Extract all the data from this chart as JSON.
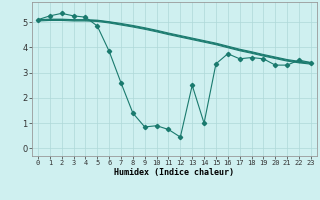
{
  "background_color": "#cff0f0",
  "grid_color": "#afd8d8",
  "line_color": "#1a7a6e",
  "xlabel": "Humidex (Indice chaleur)",
  "xlim": [
    -0.5,
    23.5
  ],
  "ylim": [
    -0.3,
    5.8
  ],
  "yticks": [
    0,
    1,
    2,
    3,
    4,
    5
  ],
  "xticks": [
    0,
    1,
    2,
    3,
    4,
    5,
    6,
    7,
    8,
    9,
    10,
    11,
    12,
    13,
    14,
    15,
    16,
    17,
    18,
    19,
    20,
    21,
    22,
    23
  ],
  "smooth_lines": [
    [
      5.1,
      5.12,
      5.12,
      5.1,
      5.1,
      5.08,
      5.02,
      4.95,
      4.87,
      4.78,
      4.68,
      4.57,
      4.47,
      4.37,
      4.27,
      4.17,
      4.05,
      3.93,
      3.83,
      3.72,
      3.62,
      3.52,
      3.45,
      3.4
    ],
    [
      5.08,
      5.1,
      5.1,
      5.08,
      5.08,
      5.06,
      5.0,
      4.92,
      4.84,
      4.75,
      4.65,
      4.54,
      4.44,
      4.34,
      4.24,
      4.14,
      4.02,
      3.9,
      3.8,
      3.69,
      3.59,
      3.49,
      3.42,
      3.37
    ],
    [
      5.05,
      5.07,
      5.07,
      5.05,
      5.05,
      5.03,
      4.97,
      4.89,
      4.81,
      4.72,
      4.62,
      4.51,
      4.41,
      4.31,
      4.21,
      4.11,
      3.99,
      3.87,
      3.77,
      3.66,
      3.56,
      3.46,
      3.39,
      3.34
    ]
  ],
  "jagged_line": {
    "x": [
      0,
      1,
      2,
      3,
      4,
      5,
      6,
      7,
      8,
      9,
      10,
      11,
      12,
      13,
      14,
      15,
      16,
      17,
      18,
      19,
      20,
      21,
      22,
      23
    ],
    "y": [
      5.1,
      5.25,
      5.35,
      5.25,
      5.2,
      4.85,
      3.85,
      2.6,
      1.4,
      0.85,
      0.9,
      0.75,
      0.45,
      2.5,
      1.0,
      3.35,
      3.75,
      3.55,
      3.6,
      3.55,
      3.3,
      3.3,
      3.5,
      3.4
    ]
  },
  "xlabel_fontsize": 6.0,
  "xtick_fontsize": 5.0,
  "ytick_fontsize": 6.0
}
